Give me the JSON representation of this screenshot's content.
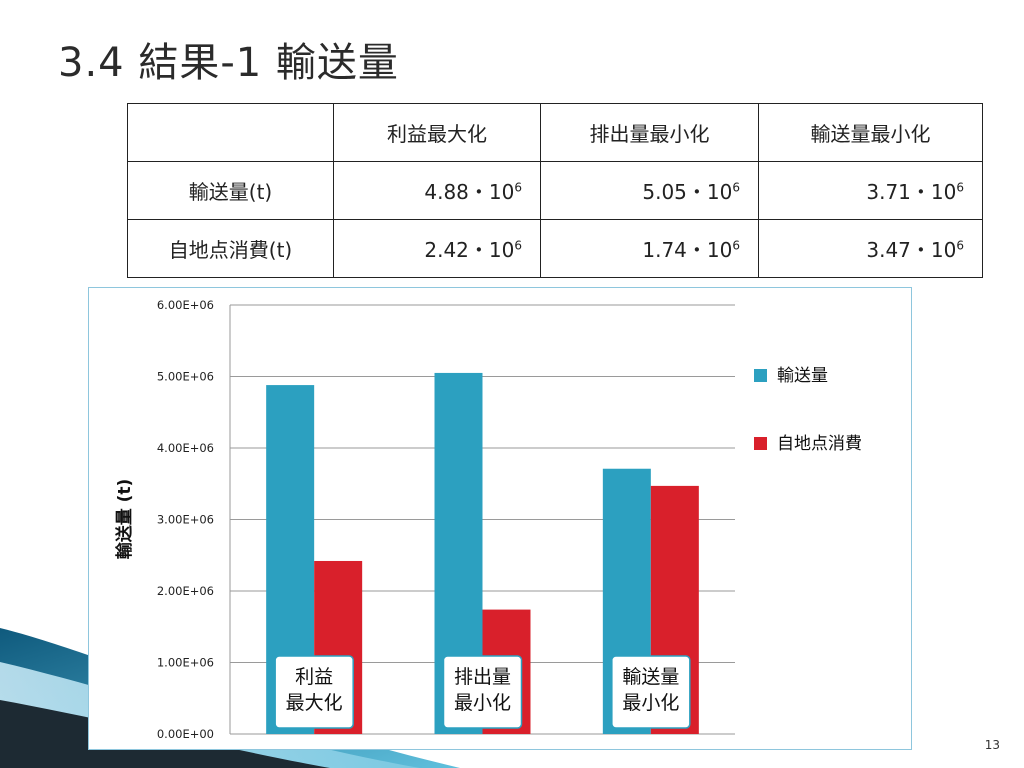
{
  "slide": {
    "title": "3.4 結果-1 輸送量",
    "page_number": "13"
  },
  "table": {
    "headers": [
      "",
      "利益最大化",
      "排出量最小化",
      "輸送量最小化"
    ],
    "rows": [
      {
        "label": "輸送量(t)",
        "cells": [
          {
            "mantissa": "4.88・10",
            "exp": "6"
          },
          {
            "mantissa": "5.05・10",
            "exp": "6"
          },
          {
            "mantissa": "3.71・10",
            "exp": "6"
          }
        ]
      },
      {
        "label": "自地点消費(t)",
        "cells": [
          {
            "mantissa": "2.42・10",
            "exp": "6"
          },
          {
            "mantissa": "1.74・10",
            "exp": "6"
          },
          {
            "mantissa": "3.47・10",
            "exp": "6"
          }
        ]
      }
    ]
  },
  "chart_data": {
    "type": "bar",
    "ylabel": "輸送量 (t)",
    "ylim": [
      0,
      6000000
    ],
    "yticks": [
      0,
      1000000,
      2000000,
      3000000,
      4000000,
      5000000,
      6000000
    ],
    "ytick_labels": [
      "0.00E+00",
      "1.00E+06",
      "2.00E+06",
      "3.00E+06",
      "4.00E+06",
      "5.00E+06",
      "6.00E+06"
    ],
    "categories": [
      [
        "利益",
        "最大化"
      ],
      [
        "排出量",
        "最小化"
      ],
      [
        "輸送量",
        "最小化"
      ]
    ],
    "series": [
      {
        "name": "輸送量",
        "color": "#2ca0c0",
        "values": [
          4880000,
          5050000,
          3710000
        ]
      },
      {
        "name": "自地点消費",
        "color": "#d9202b",
        "values": [
          2420000,
          1740000,
          3470000
        ]
      }
    ],
    "grid": true,
    "legend": "right"
  }
}
